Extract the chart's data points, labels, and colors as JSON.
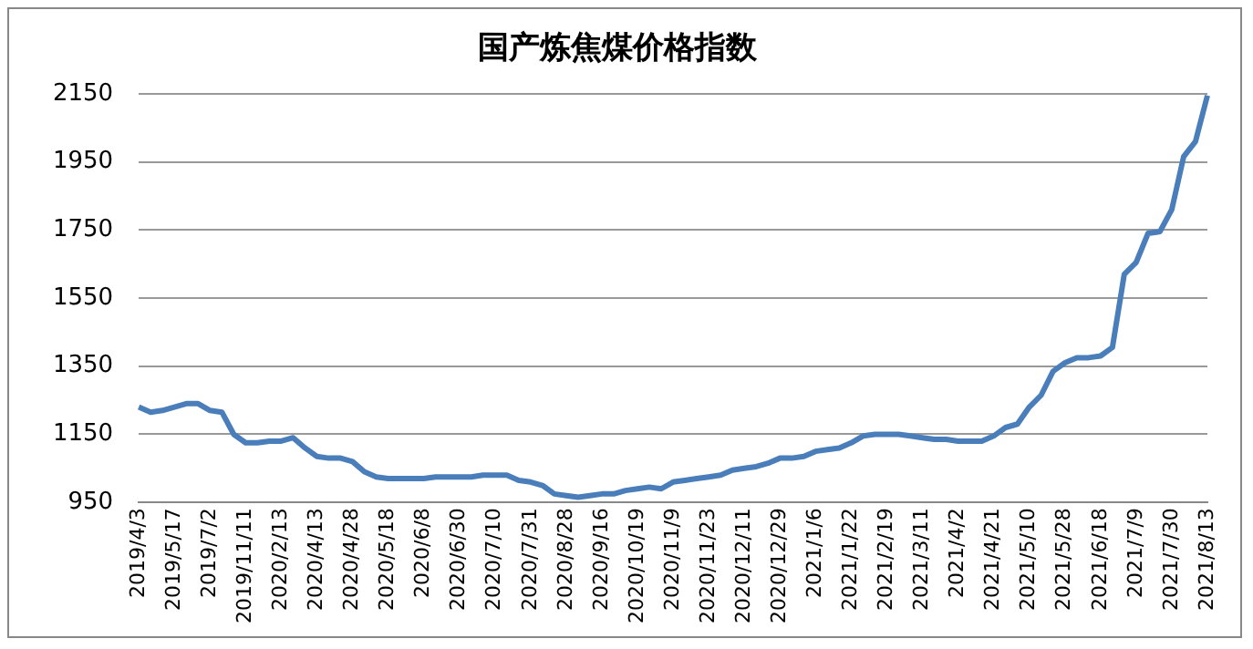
{
  "chart_data": {
    "type": "line",
    "title": "国产炼焦煤价格指数",
    "categories": [
      "2019/4/3",
      null,
      null,
      "2019/5/17",
      null,
      null,
      "2019/7/2",
      null,
      null,
      "2019/11/11",
      null,
      null,
      "2020/2/13",
      null,
      null,
      "2020/4/13",
      null,
      null,
      "2020/4/28",
      null,
      null,
      "2020/5/18",
      null,
      null,
      "2020/6/8",
      null,
      null,
      "2020/6/30",
      null,
      null,
      "2020/7/10",
      null,
      null,
      "2020/7/31",
      null,
      null,
      "2020/8/28",
      null,
      null,
      "2020/9/16",
      null,
      null,
      "2020/10/19",
      null,
      null,
      "2020/11/9",
      null,
      null,
      "2020/11/23",
      null,
      null,
      "2020/12/11",
      null,
      null,
      "2020/12/29",
      null,
      null,
      "2021/1/6",
      null,
      null,
      "2021/1/22",
      null,
      null,
      "2021/2/19",
      null,
      null,
      "2021/3/11",
      null,
      null,
      "2021/4/2",
      null,
      null,
      "2021/4/21",
      null,
      null,
      "2021/5/10",
      null,
      null,
      "2021/5/28",
      null,
      null,
      "2021/6/18",
      null,
      null,
      "2021/7/9",
      null,
      null,
      "2021/7/30",
      null,
      null,
      "2021/8/13"
    ],
    "series": [
      {
        "color": "#4a7ebb",
        "values": [
          1230,
          1215,
          1220,
          1230,
          1240,
          1240,
          1220,
          1215,
          1150,
          1125,
          1125,
          1130,
          1130,
          1140,
          1110,
          1085,
          1080,
          1080,
          1070,
          1040,
          1025,
          1020,
          1020,
          1020,
          1020,
          1025,
          1025,
          1025,
          1025,
          1030,
          1030,
          1030,
          1015,
          1010,
          1000,
          975,
          970,
          965,
          970,
          975,
          975,
          985,
          990,
          995,
          990,
          1010,
          1015,
          1020,
          1025,
          1030,
          1045,
          1050,
          1055,
          1065,
          1080,
          1080,
          1085,
          1100,
          1105,
          1110,
          1125,
          1145,
          1150,
          1150,
          1150,
          1145,
          1140,
          1135,
          1135,
          1130,
          1130,
          1130,
          1145,
          1170,
          1180,
          1230,
          1265,
          1335,
          1360,
          1375,
          1375,
          1380,
          1405,
          1620,
          1655,
          1740,
          1745,
          1810,
          1965,
          2010,
          2145
        ]
      }
    ],
    "ylim": [
      950,
      2150
    ],
    "yticks": [
      950,
      1150,
      1350,
      1550,
      1750,
      1950,
      2150
    ],
    "grid": "y",
    "legend": false,
    "marker": "none",
    "line_style": "solid"
  }
}
